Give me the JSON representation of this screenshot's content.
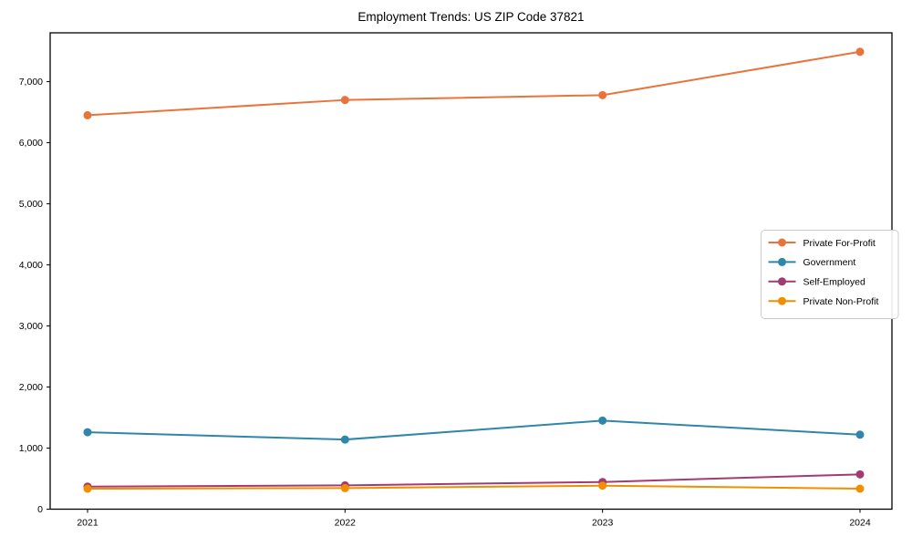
{
  "chart_data": {
    "type": "line",
    "title": "Employment Trends: US ZIP Code 37821",
    "xlabel": "",
    "ylabel": "",
    "categories": [
      "2021",
      "2022",
      "2023",
      "2024"
    ],
    "series": [
      {
        "name": "Private For-Profit",
        "color": "#e8743b",
        "values": [
          6450,
          6700,
          6780,
          7490
        ]
      },
      {
        "name": "Government",
        "color": "#2e86ab",
        "values": [
          1260,
          1140,
          1450,
          1220
        ]
      },
      {
        "name": "Self-Employed",
        "color": "#a23b72",
        "values": [
          370,
          390,
          445,
          570
        ]
      },
      {
        "name": "Private Non-Profit",
        "color": "#f18f01",
        "values": [
          335,
          345,
          385,
          335
        ]
      }
    ],
    "ylim": [
      0,
      7800
    ],
    "yticks": [
      0,
      1000,
      2000,
      3000,
      4000,
      5000,
      6000,
      7000
    ],
    "ytick_labels": [
      "0",
      "1,000",
      "2,000",
      "3,000",
      "4,000",
      "5,000",
      "6,000",
      "7,000"
    ],
    "grid": false,
    "legend_position": "center-right",
    "marker": "circle",
    "colors": {
      "background": "#ffffff",
      "frame": "#000000",
      "tick_text": "#000000",
      "legend_border": "#cccccc",
      "legend_background": "#ffffff"
    }
  }
}
